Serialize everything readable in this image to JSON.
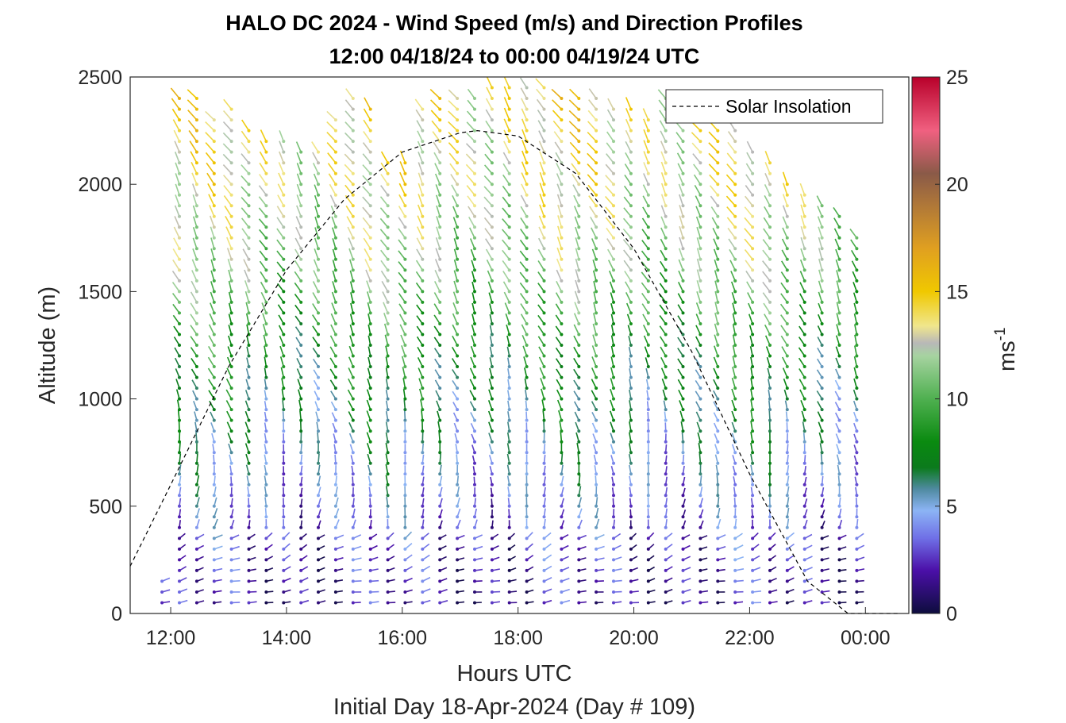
{
  "chart_data": {
    "type": "wind-barb-profile",
    "title": "HALO DC 2024 - Wind Speed (m/s) and Direction Profiles",
    "subtitle": "12:00 04/18/24 to 00:00 04/19/24  UTC",
    "xlabel": "Hours UTC",
    "xlabel2": "Initial Day 18-Apr-2024 (Day # 109)",
    "ylabel": "Altitude (m)",
    "xlim": [
      11.3,
      24.75
    ],
    "ylim": [
      0,
      2500
    ],
    "x_ticks": [
      {
        "value": 12,
        "label": "12:00"
      },
      {
        "value": 14,
        "label": "14:00"
      },
      {
        "value": 16,
        "label": "16:00"
      },
      {
        "value": 18,
        "label": "18:00"
      },
      {
        "value": 20,
        "label": "20:00"
      },
      {
        "value": 22,
        "label": "22:00"
      },
      {
        "value": 24,
        "label": "00:00"
      }
    ],
    "y_ticks": [
      0,
      500,
      1000,
      1500,
      2000,
      2500
    ],
    "colorbar": {
      "label": "ms",
      "label_exponent": "-1",
      "range": [
        0,
        25
      ],
      "ticks": [
        0,
        5,
        10,
        15,
        20,
        25
      ],
      "stops": [
        {
          "value": 0,
          "color": "#0d0d3d"
        },
        {
          "value": 2,
          "color": "#4b0fa8"
        },
        {
          "value": 3.5,
          "color": "#6f6fe6"
        },
        {
          "value": 4.8,
          "color": "#8cb4f5"
        },
        {
          "value": 5.8,
          "color": "#4f8aa0"
        },
        {
          "value": 6.8,
          "color": "#0b7a1c"
        },
        {
          "value": 8,
          "color": "#0a8a10"
        },
        {
          "value": 10,
          "color": "#4fb050"
        },
        {
          "value": 12,
          "color": "#a6d3a0"
        },
        {
          "value": 12.6,
          "color": "#b8b8b8"
        },
        {
          "value": 13.4,
          "color": "#f0e68c"
        },
        {
          "value": 15,
          "color": "#f0c800"
        },
        {
          "value": 17,
          "color": "#e0a020"
        },
        {
          "value": 19,
          "color": "#b07838"
        },
        {
          "value": 20.5,
          "color": "#8a5a48"
        },
        {
          "value": 22.5,
          "color": "#f06080"
        },
        {
          "value": 25,
          "color": "#b8002a"
        }
      ]
    },
    "legend": {
      "entries": [
        "Solar Insolation"
      ],
      "placement": "top-right",
      "line_style": "dashed"
    },
    "solar_insolation_curve": {
      "x": [
        11.3,
        12.0,
        13.0,
        14.0,
        15.0,
        16.0,
        17.0,
        17.3,
        18.0,
        19.0,
        20.0,
        21.0,
        22.0,
        23.0,
        23.7,
        24.6
      ],
      "y": [
        220,
        600,
        1150,
        1600,
        1930,
        2150,
        2240,
        2250,
        2225,
        2050,
        1700,
        1220,
        650,
        150,
        0,
        0
      ]
    },
    "profiles": {
      "times": [
        11.85,
        12.15,
        12.45,
        12.75,
        13.05,
        13.35,
        13.65,
        13.95,
        14.25,
        14.55,
        14.85,
        15.15,
        15.45,
        15.75,
        16.05,
        16.35,
        16.65,
        16.95,
        17.25,
        17.55,
        17.85,
        18.15,
        18.45,
        18.75,
        19.05,
        19.35,
        19.65,
        19.95,
        20.25,
        20.55,
        20.85,
        21.15,
        21.45,
        21.75,
        22.05,
        22.35,
        22.65,
        22.95,
        23.25,
        23.55,
        23.85
      ],
      "top_altitudes": [
        180,
        2410,
        2410,
        2330,
        2360,
        2290,
        2240,
        2240,
        2170,
        2170,
        2320,
        2410,
        2370,
        2140,
        2100,
        2360,
        2440,
        2430,
        2430,
        2480,
        2480,
        2480,
        2450,
        2420,
        2400,
        2410,
        2380,
        2380,
        2320,
        2410,
        2400,
        2360,
        2300,
        2350,
        2170,
        2120,
        2030,
        1960,
        1920,
        1870,
        1780
      ],
      "altitude_step": 50,
      "speed_layers": [
        {
          "alt": 0,
          "speed": 1.5
        },
        {
          "alt": 300,
          "speed": 2.5
        },
        {
          "alt": 700,
          "speed": 5.0
        },
        {
          "alt": 1200,
          "speed": 8.0
        },
        {
          "alt": 1600,
          "speed": 11.0
        },
        {
          "alt": 2000,
          "speed": 13.0
        },
        {
          "alt": 2400,
          "speed": 14.0
        }
      ],
      "direction_deg_from": {
        "low": 90,
        "mid": 200,
        "high": 215
      }
    }
  }
}
